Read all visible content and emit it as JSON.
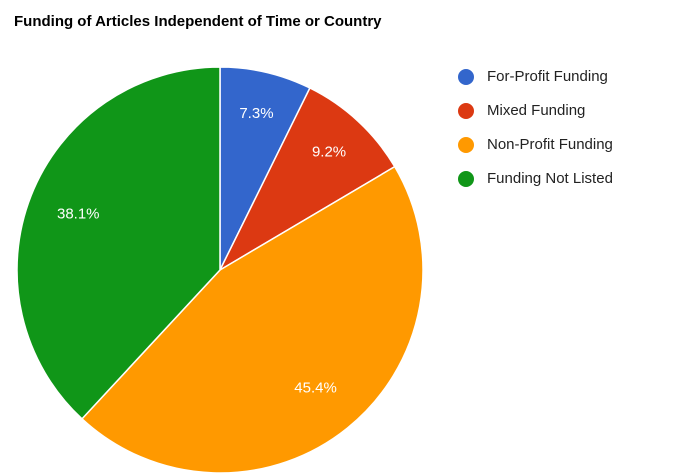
{
  "chart_data": {
    "type": "pie",
    "title": "Funding of Articles Independent of Time or Country",
    "categories": [
      "For-Profit Funding",
      "Mixed Funding",
      "Non-Profit Funding",
      "Funding Not Listed"
    ],
    "values": [
      7.3,
      9.2,
      45.4,
      38.1
    ],
    "value_labels": [
      "7.3%",
      "9.2%",
      "45.4%",
      "38.1%"
    ],
    "colors": [
      "#3366cc",
      "#dc3912",
      "#ff9900",
      "#109618"
    ],
    "legend": "right"
  }
}
